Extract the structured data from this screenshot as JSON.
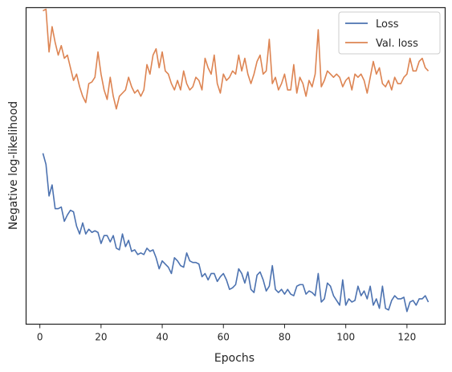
{
  "chart_data": {
    "type": "line",
    "xlabel": "Epochs",
    "ylabel": "Negative log-likelihood",
    "xlim": [
      -4.5,
      132.5
    ],
    "ylim": [
      0.0,
      1.0
    ],
    "xticks": [
      0,
      20,
      40,
      60,
      80,
      100,
      120
    ],
    "grid": false,
    "legend_position": "top-right",
    "series": [
      {
        "name": "Loss",
        "color": "#4c72b0",
        "x": [
          1,
          2,
          3,
          4,
          5,
          6,
          7,
          8,
          9,
          10,
          11,
          12,
          13,
          14,
          15,
          16,
          17,
          18,
          19,
          20,
          21,
          22,
          23,
          24,
          25,
          26,
          27,
          28,
          29,
          30,
          31,
          32,
          33,
          34,
          35,
          36,
          37,
          38,
          39,
          40,
          41,
          42,
          43,
          44,
          45,
          46,
          47,
          48,
          49,
          50,
          51,
          52,
          53,
          54,
          55,
          56,
          57,
          58,
          59,
          60,
          61,
          62,
          63,
          64,
          65,
          66,
          67,
          68,
          69,
          70,
          71,
          72,
          73,
          74,
          75,
          76,
          77,
          78,
          79,
          80,
          81,
          82,
          83,
          84,
          85,
          86,
          87,
          88,
          89,
          90,
          91,
          92,
          93,
          94,
          95,
          96,
          97,
          98,
          99,
          100,
          101,
          102,
          103,
          104,
          105,
          106,
          107,
          108,
          109,
          110,
          111,
          112,
          113,
          114,
          115,
          116,
          117,
          118,
          119,
          120,
          121,
          122,
          123,
          124,
          125,
          126,
          127
        ],
        "values": [
          0.54,
          0.505,
          0.405,
          0.44,
          0.365,
          0.365,
          0.37,
          0.325,
          0.345,
          0.36,
          0.355,
          0.31,
          0.285,
          0.32,
          0.285,
          0.3,
          0.29,
          0.295,
          0.29,
          0.255,
          0.28,
          0.28,
          0.26,
          0.28,
          0.24,
          0.235,
          0.285,
          0.245,
          0.265,
          0.23,
          0.235,
          0.22,
          0.225,
          0.22,
          0.24,
          0.23,
          0.235,
          0.21,
          0.175,
          0.2,
          0.19,
          0.18,
          0.16,
          0.21,
          0.2,
          0.185,
          0.18,
          0.225,
          0.2,
          0.195,
          0.195,
          0.19,
          0.15,
          0.16,
          0.14,
          0.16,
          0.16,
          0.135,
          0.15,
          0.16,
          0.14,
          0.11,
          0.115,
          0.125,
          0.175,
          0.16,
          0.13,
          0.165,
          0.11,
          0.1,
          0.155,
          0.165,
          0.14,
          0.105,
          0.12,
          0.185,
          0.11,
          0.1,
          0.11,
          0.095,
          0.11,
          0.095,
          0.09,
          0.12,
          0.125,
          0.125,
          0.095,
          0.105,
          0.1,
          0.09,
          0.16,
          0.07,
          0.08,
          0.13,
          0.12,
          0.09,
          0.075,
          0.06,
          0.14,
          0.06,
          0.08,
          0.07,
          0.075,
          0.12,
          0.09,
          0.105,
          0.08,
          0.12,
          0.06,
          0.08,
          0.05,
          0.12,
          0.05,
          0.045,
          0.075,
          0.09,
          0.08,
          0.08,
          0.085,
          0.04,
          0.07,
          0.075,
          0.06,
          0.08,
          0.08,
          0.09,
          0.07
        ]
      },
      {
        "name": "Val. loss",
        "color": "#dd8452",
        "x": [
          1,
          2,
          3,
          4,
          5,
          6,
          7,
          8,
          9,
          10,
          11,
          12,
          13,
          14,
          15,
          16,
          17,
          18,
          19,
          20,
          21,
          22,
          23,
          24,
          25,
          26,
          27,
          28,
          29,
          30,
          31,
          32,
          33,
          34,
          35,
          36,
          37,
          38,
          39,
          40,
          41,
          42,
          43,
          44,
          45,
          46,
          47,
          48,
          49,
          50,
          51,
          52,
          53,
          54,
          55,
          56,
          57,
          58,
          59,
          60,
          61,
          62,
          63,
          64,
          65,
          66,
          67,
          68,
          69,
          70,
          71,
          72,
          73,
          74,
          75,
          76,
          77,
          78,
          79,
          80,
          81,
          82,
          83,
          84,
          85,
          86,
          87,
          88,
          89,
          90,
          91,
          92,
          93,
          94,
          95,
          96,
          97,
          98,
          99,
          100,
          101,
          102,
          103,
          104,
          105,
          106,
          107,
          108,
          109,
          110,
          111,
          112,
          113,
          114,
          115,
          116,
          117,
          118,
          119,
          120,
          121,
          122,
          123,
          124,
          125,
          126,
          127
        ],
        "values": [
          0.99,
          0.995,
          0.86,
          0.94,
          0.89,
          0.85,
          0.88,
          0.84,
          0.85,
          0.81,
          0.77,
          0.79,
          0.75,
          0.72,
          0.7,
          0.76,
          0.765,
          0.78,
          0.86,
          0.79,
          0.74,
          0.71,
          0.78,
          0.72,
          0.68,
          0.72,
          0.73,
          0.74,
          0.78,
          0.75,
          0.73,
          0.74,
          0.72,
          0.74,
          0.82,
          0.79,
          0.85,
          0.87,
          0.81,
          0.86,
          0.8,
          0.79,
          0.76,
          0.74,
          0.77,
          0.74,
          0.8,
          0.76,
          0.74,
          0.75,
          0.78,
          0.77,
          0.74,
          0.84,
          0.81,
          0.79,
          0.85,
          0.76,
          0.73,
          0.79,
          0.77,
          0.78,
          0.8,
          0.79,
          0.85,
          0.8,
          0.84,
          0.79,
          0.76,
          0.79,
          0.83,
          0.85,
          0.79,
          0.8,
          0.9,
          0.76,
          0.78,
          0.74,
          0.76,
          0.79,
          0.74,
          0.74,
          0.82,
          0.73,
          0.78,
          0.76,
          0.72,
          0.77,
          0.75,
          0.79,
          0.93,
          0.75,
          0.77,
          0.8,
          0.79,
          0.78,
          0.79,
          0.78,
          0.75,
          0.77,
          0.78,
          0.74,
          0.79,
          0.78,
          0.79,
          0.77,
          0.73,
          0.78,
          0.83,
          0.79,
          0.81,
          0.76,
          0.75,
          0.77,
          0.74,
          0.78,
          0.76,
          0.76,
          0.78,
          0.79,
          0.84,
          0.8,
          0.8,
          0.83,
          0.84,
          0.81,
          0.8
        ]
      }
    ]
  }
}
